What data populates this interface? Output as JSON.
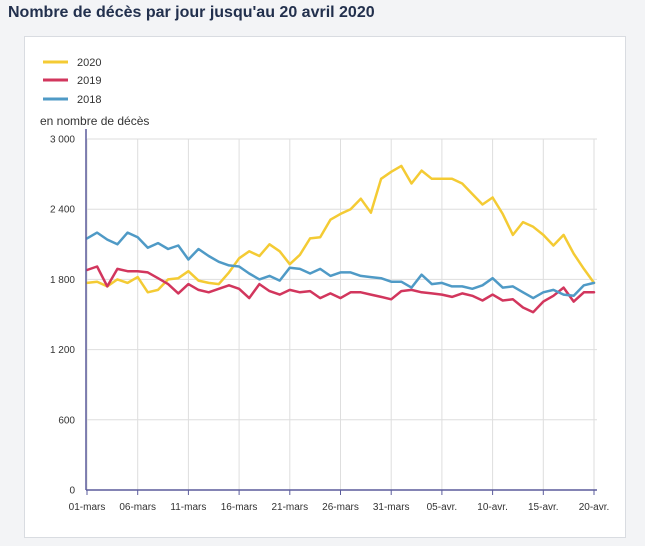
{
  "page_title": "Nombre de décès par jour jusqu'au 20 avril 2020",
  "chart_data": {
    "type": "line",
    "ylabel": "en nombre de décès",
    "ylim": [
      0,
      3000
    ],
    "yticks": [
      0,
      600,
      1200,
      1800,
      2400,
      3000
    ],
    "ytick_labels": [
      "0",
      "600",
      "1 200",
      "1 800",
      "2 400",
      "3 000"
    ],
    "x_count": 51,
    "xticks": [
      {
        "index": 0,
        "label": "01-mars"
      },
      {
        "index": 5,
        "label": "06-mars"
      },
      {
        "index": 10,
        "label": "11-mars"
      },
      {
        "index": 15,
        "label": "16-mars"
      },
      {
        "index": 20,
        "label": "21-mars"
      },
      {
        "index": 25,
        "label": "26-mars"
      },
      {
        "index": 30,
        "label": "31-mars"
      },
      {
        "index": 35,
        "label": "05-avr."
      },
      {
        "index": 40,
        "label": "10-avr."
      },
      {
        "index": 45,
        "label": "15-avr."
      },
      {
        "index": 50,
        "label": "20-avr."
      }
    ],
    "series": [
      {
        "name": "2020",
        "color": "#f4cb34",
        "values": [
          1770,
          1780,
          1740,
          1800,
          1770,
          1820,
          1690,
          1710,
          1800,
          1810,
          1870,
          1790,
          1770,
          1760,
          1860,
          1980,
          2040,
          2000,
          2100,
          2040,
          1930,
          2010,
          2150,
          2160,
          2310,
          2360,
          2400,
          2490,
          2370,
          2660,
          2720,
          2770,
          2620,
          2730,
          2660,
          2660,
          2660,
          2620,
          2530,
          2440,
          2500,
          2360,
          2180,
          2290,
          2250,
          2180,
          2090,
          2180,
          2020,
          1890,
          1770
        ]
      },
      {
        "name": "2019",
        "color": "#d2365d",
        "values": [
          1880,
          1910,
          1740,
          1890,
          1870,
          1870,
          1860,
          1810,
          1760,
          1680,
          1760,
          1710,
          1690,
          1720,
          1750,
          1720,
          1640,
          1760,
          1700,
          1670,
          1710,
          1690,
          1700,
          1640,
          1680,
          1640,
          1690,
          1690,
          1670,
          1650,
          1630,
          1700,
          1710,
          1690,
          1680,
          1670,
          1650,
          1680,
          1660,
          1620,
          1670,
          1620,
          1630,
          1560,
          1520,
          1610,
          1660,
          1730,
          1610,
          1690,
          1690
        ]
      },
      {
        "name": "2018",
        "color": "#4f9ac6",
        "values": [
          2150,
          2200,
          2140,
          2100,
          2200,
          2160,
          2070,
          2110,
          2060,
          2090,
          1970,
          2060,
          2000,
          1950,
          1920,
          1910,
          1850,
          1800,
          1830,
          1790,
          1900,
          1890,
          1850,
          1890,
          1830,
          1860,
          1860,
          1830,
          1820,
          1810,
          1780,
          1780,
          1730,
          1840,
          1760,
          1770,
          1740,
          1740,
          1720,
          1750,
          1810,
          1730,
          1740,
          1690,
          1640,
          1690,
          1710,
          1670,
          1660,
          1750,
          1770
        ]
      }
    ]
  }
}
